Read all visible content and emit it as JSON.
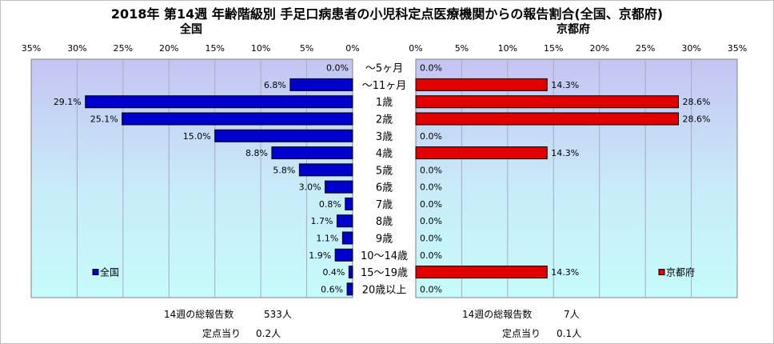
{
  "title": "2018年 第14週 年齢階級別 手足口病患者の小児科定点医療機関からの報告割合(全国、京都府)",
  "chart_data": [
    {
      "type": "bar",
      "orientation": "horizontal",
      "subtitle": "全国",
      "direction": "right-to-left",
      "xlim": [
        0,
        35
      ],
      "ticks": [
        0,
        5,
        10,
        15,
        20,
        25,
        30,
        35
      ],
      "tick_labels": [
        "0%",
        "5%",
        "10%",
        "15%",
        "20%",
        "25%",
        "30%",
        "35%"
      ],
      "categories": [
        "～5ヶ月",
        "～11ヶ月",
        "1歳",
        "2歳",
        "3歳",
        "4歳",
        "5歳",
        "6歳",
        "7歳",
        "8歳",
        "9歳",
        "10～14歳",
        "15～19歳",
        "20歳以上"
      ],
      "series": [
        {
          "name": "全国",
          "color": "#0000cc",
          "values": [
            0.0,
            6.8,
            29.1,
            25.1,
            15.0,
            8.8,
            5.8,
            3.0,
            0.8,
            1.7,
            1.1,
            1.9,
            0.4,
            0.6
          ],
          "labels": [
            "0.0%",
            "6.8%",
            "29.1%",
            "25.1%",
            "15.0%",
            "8.8%",
            "5.8%",
            "3.0%",
            "0.8%",
            "1.7%",
            "1.1%",
            "1.9%",
            "0.4%",
            "0.6%"
          ]
        }
      ],
      "grid": true,
      "legend": "bottom-left",
      "plot_background": "light-blue gradient"
    },
    {
      "type": "bar",
      "orientation": "horizontal",
      "subtitle": "京都府",
      "direction": "left-to-right",
      "xlim": [
        0,
        35
      ],
      "ticks": [
        0,
        5,
        10,
        15,
        20,
        25,
        30,
        35
      ],
      "tick_labels": [
        "0%",
        "5%",
        "10%",
        "15%",
        "20%",
        "25%",
        "30%",
        "35%"
      ],
      "categories": [
        "～5ヶ月",
        "～11ヶ月",
        "1歳",
        "2歳",
        "3歳",
        "4歳",
        "5歳",
        "6歳",
        "7歳",
        "8歳",
        "9歳",
        "10～14歳",
        "15～19歳",
        "20歳以上"
      ],
      "series": [
        {
          "name": "京都府",
          "color": "#e00000",
          "values": [
            0.0,
            14.3,
            28.6,
            28.6,
            0.0,
            14.3,
            0.0,
            0.0,
            0.0,
            0.0,
            0.0,
            0.0,
            14.3,
            0.0
          ],
          "labels": [
            "0.0%",
            "14.3%",
            "28.6%",
            "28.6%",
            "0.0%",
            "14.3%",
            "0.0%",
            "0.0%",
            "0.0%",
            "0.0%",
            "0.0%",
            "0.0%",
            "14.3%",
            "0.0%"
          ]
        }
      ],
      "grid": true,
      "legend": "bottom-right",
      "plot_background": "light-blue gradient"
    }
  ],
  "footer": {
    "national_total_label": "14週の総報告数",
    "national_total_value": "533人",
    "national_per_label": "定点当り",
    "national_per_value": "0.2人",
    "kyoto_total_label": "14週の総報告数",
    "kyoto_total_value": "7人",
    "kyoto_per_label": "定点当り",
    "kyoto_per_value": "0.1人"
  }
}
